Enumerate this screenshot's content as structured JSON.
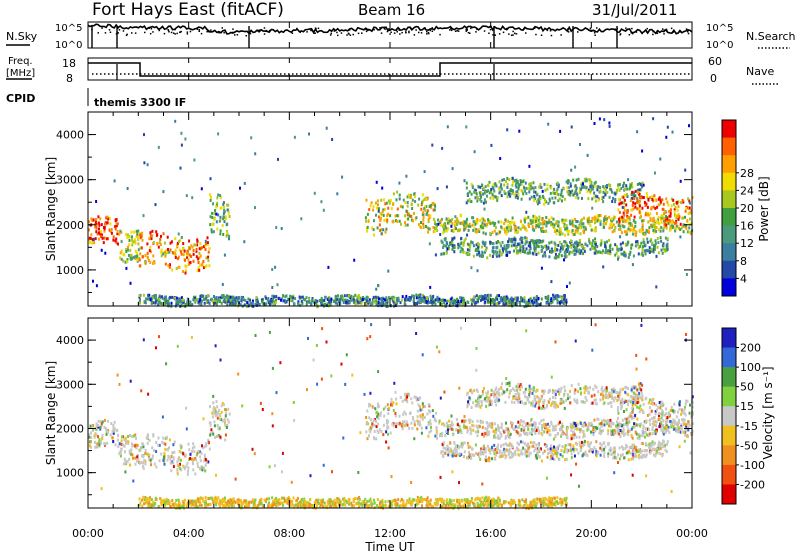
{
  "header": {
    "station": "Fort Hays East (fitACF)",
    "beam": "Beam 16",
    "date": "31/Jul/2011"
  },
  "top_panels": {
    "nsky_label": "N.Sky",
    "nsky_ticks": [
      "10^5",
      "10^0"
    ],
    "nsearch_label": "N.Search",
    "nsearch_ticks": [
      "10^5",
      "10^0"
    ],
    "freq_label_line1": "Freq.",
    "freq_label_line2": "[MHz]",
    "freq_ticks": [
      "18",
      "8"
    ],
    "nave_label": "Nave",
    "nave_ticks": [
      "60",
      "0"
    ],
    "cpid_label": "CPID",
    "cpid_value": "themis 3300 IF"
  },
  "chart_data": [
    {
      "type": "heatmap",
      "panel": "power",
      "ylabel": "Slant Range [km]",
      "yticks": [
        "1000",
        "2000",
        "3000",
        "4000"
      ],
      "ylim": [
        200,
        4500
      ],
      "xlim": [
        0,
        24
      ],
      "colorbar_label": "Power [dB]",
      "colorbar_ticks": [
        "4",
        "8",
        "12",
        "16",
        "20",
        "24",
        "28"
      ],
      "colorbar_colors": [
        "#0000dd",
        "#2448a8",
        "#3a7ea0",
        "#4a9a7c",
        "#40a040",
        "#a8c820",
        "#f0dc00",
        "#ffa000",
        "#ff6000",
        "#ee0000"
      ],
      "echo_bands": [
        {
          "t0": 0.0,
          "t1": 1.2,
          "r0": 1550,
          "r1": 2150,
          "level": 0.9
        },
        {
          "t0": 1.2,
          "t1": 2.0,
          "r0": 1300,
          "r1": 2000,
          "level": 0.55
        },
        {
          "t0": 2.0,
          "t1": 4.8,
          "r0": 1050,
          "r1": 1800,
          "level": 0.8
        },
        {
          "t0": 4.8,
          "t1": 5.6,
          "r0": 1700,
          "r1": 2600,
          "level": 0.45
        },
        {
          "t0": 11.0,
          "t1": 13.8,
          "r0": 1900,
          "r1": 2700,
          "level": 0.6
        },
        {
          "t0": 13.8,
          "t1": 24.0,
          "r0": 1850,
          "r1": 2200,
          "level": 0.55
        },
        {
          "t0": 14.0,
          "t1": 23.0,
          "r0": 1350,
          "r1": 1700,
          "level": 0.35
        },
        {
          "t0": 15.0,
          "t1": 22.0,
          "r0": 2550,
          "r1": 3000,
          "level": 0.4
        },
        {
          "t0": 21.0,
          "t1": 24.0,
          "r0": 2100,
          "r1": 2700,
          "level": 0.8
        },
        {
          "t0": 2.0,
          "t1": 19.0,
          "r0": 250,
          "r1": 450,
          "level": 0.3
        }
      ]
    },
    {
      "type": "heatmap",
      "panel": "velocity",
      "ylabel": "Slant Range [km]",
      "yticks": [
        "1000",
        "2000",
        "3000",
        "4000"
      ],
      "ylim": [
        200,
        4500
      ],
      "xlim": [
        0,
        24
      ],
      "xlabel": "Time UT",
      "xticks": [
        "00:00",
        "04:00",
        "08:00",
        "12:00",
        "16:00",
        "20:00",
        "00:00"
      ],
      "colorbar_label": "Velocity [m s⁻¹]",
      "colorbar_ticks": [
        "200",
        "100",
        "50",
        "15",
        "-15",
        "-50",
        "-100",
        "-200"
      ],
      "colorbar_colors": [
        "#2020c0",
        "#3468d8",
        "#48a040",
        "#80d040",
        "#c8c8c8",
        "#f0c020",
        "#f09020",
        "#f05010",
        "#e00000"
      ],
      "echo_bands": [
        {
          "t0": 0.0,
          "t1": 1.2,
          "r0": 1550,
          "r1": 2150,
          "level": 0.5
        },
        {
          "t0": 1.2,
          "t1": 2.0,
          "r0": 1300,
          "r1": 2000,
          "level": 0.5
        },
        {
          "t0": 2.0,
          "t1": 4.8,
          "r0": 1050,
          "r1": 1800,
          "level": 0.5
        },
        {
          "t0": 4.8,
          "t1": 5.6,
          "r0": 1700,
          "r1": 2600,
          "level": 0.5
        },
        {
          "t0": 11.0,
          "t1": 13.8,
          "r0": 1900,
          "r1": 2700,
          "level": 0.5
        },
        {
          "t0": 13.8,
          "t1": 24.0,
          "r0": 1850,
          "r1": 2200,
          "level": 0.5
        },
        {
          "t0": 14.0,
          "t1": 23.0,
          "r0": 1350,
          "r1": 1700,
          "level": 0.5
        },
        {
          "t0": 15.0,
          "t1": 22.0,
          "r0": 2550,
          "r1": 3000,
          "level": 0.5
        },
        {
          "t0": 21.0,
          "t1": 24.0,
          "r0": 2100,
          "r1": 2700,
          "level": 0.5
        },
        {
          "t0": 2.0,
          "t1": 19.0,
          "r0": 250,
          "r1": 450,
          "level": 0.3
        }
      ]
    }
  ]
}
